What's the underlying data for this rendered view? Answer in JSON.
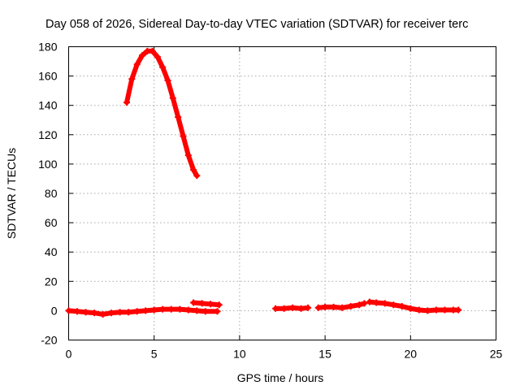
{
  "chart_data": {
    "type": "line",
    "title": "Day 058 of 2026, Sidereal Day-to-day VTEC variation (SDTVAR) for receiver terc",
    "xlabel": "GPS time / hours",
    "ylabel": "SDTVAR / TECUs",
    "xlim": [
      0,
      25
    ],
    "ylim": [
      -20,
      180
    ],
    "x_ticks": [
      0,
      5,
      10,
      15,
      20,
      25
    ],
    "y_ticks": [
      -20,
      0,
      20,
      40,
      60,
      80,
      100,
      120,
      140,
      160,
      180
    ],
    "x_tick_labels": [
      "0",
      "5",
      "10",
      "15",
      "20",
      "25"
    ],
    "y_tick_labels": [
      "-20",
      "0",
      "20",
      "40",
      "60",
      "80",
      "100",
      "120",
      "140",
      "160",
      "180"
    ],
    "grid": true,
    "legend": "none",
    "color": "#ff0000",
    "series": [
      {
        "points": [
          [
            3.4,
            142
          ],
          [
            3.7,
            158
          ],
          [
            4.0,
            168
          ],
          [
            4.3,
            174
          ],
          [
            4.6,
            177
          ],
          [
            4.9,
            177
          ],
          [
            5.2,
            173
          ],
          [
            5.5,
            166
          ],
          [
            5.8,
            157
          ],
          [
            6.1,
            145
          ],
          [
            6.4,
            132
          ],
          [
            6.7,
            119
          ],
          [
            7.0,
            106
          ],
          [
            7.3,
            96
          ],
          [
            7.5,
            92
          ]
        ]
      },
      {
        "points": [
          [
            0.0,
            0
          ],
          [
            0.5,
            -0.5
          ],
          [
            1.0,
            -1
          ],
          [
            1.5,
            -1.5
          ],
          [
            2.0,
            -2.5
          ],
          [
            2.5,
            -1.5
          ],
          [
            3.0,
            -1
          ],
          [
            3.5,
            -1
          ],
          [
            4.0,
            -0.5
          ],
          [
            4.5,
            0
          ],
          [
            5.0,
            0.5
          ],
          [
            5.5,
            1
          ],
          [
            6.0,
            1
          ],
          [
            6.5,
            1
          ],
          [
            7.0,
            0.5
          ],
          [
            7.5,
            0
          ],
          [
            8.0,
            -0.5
          ],
          [
            8.7,
            -0.5
          ]
        ]
      },
      {
        "points": [
          [
            7.3,
            5.5
          ],
          [
            7.8,
            5
          ],
          [
            8.3,
            4.5
          ],
          [
            8.8,
            4
          ]
        ]
      },
      {
        "points": [
          [
            12.1,
            1.5
          ],
          [
            12.6,
            1.5
          ],
          [
            13.1,
            2
          ],
          [
            13.6,
            1.5
          ],
          [
            14.0,
            2
          ]
        ]
      },
      {
        "points": [
          [
            14.6,
            2
          ],
          [
            15.0,
            2.5
          ],
          [
            15.5,
            2.5
          ],
          [
            16.0,
            2
          ],
          [
            16.5,
            3
          ],
          [
            17.0,
            4
          ],
          [
            17.3,
            5
          ]
        ]
      },
      {
        "points": [
          [
            17.6,
            6
          ],
          [
            18.0,
            5.5
          ],
          [
            18.5,
            5
          ],
          [
            19.0,
            4
          ],
          [
            19.5,
            3
          ],
          [
            20.0,
            1.5
          ],
          [
            20.5,
            0.5
          ],
          [
            21.0,
            0
          ],
          [
            21.5,
            0.5
          ],
          [
            22.0,
            0.5
          ],
          [
            22.5,
            0.5
          ],
          [
            22.8,
            0.5
          ]
        ]
      }
    ]
  }
}
